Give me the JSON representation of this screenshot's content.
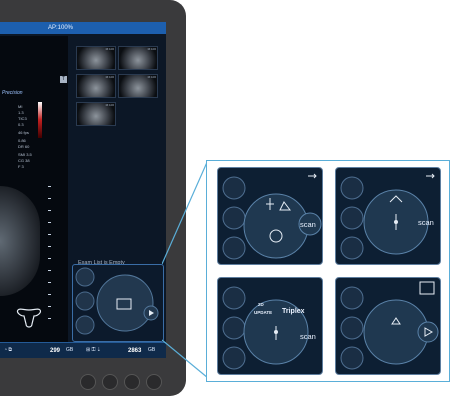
{
  "device": {
    "top_bar": {
      "power_text": "AP:100%"
    },
    "left_panel": {
      "brand_text": "Precision",
      "params": [
        "MI",
        "1.3",
        "TIC3",
        "0.3",
        "46 fps",
        "0.86",
        "DR 60",
        "SMI 3.5",
        "CG 38",
        "F 3"
      ]
    },
    "thumbnails": [
      {
        "label": "M:100"
      },
      {
        "label": "M:100"
      },
      {
        "label": "M:100"
      },
      {
        "label": "M:100"
      },
      {
        "label": "M:100"
      }
    ],
    "exam_list_status": "Exam List is Empty",
    "bottom_bar": {
      "left_value": "299",
      "left_unit": "GB",
      "right_value": "2863",
      "right_unit": "GB"
    },
    "hardware_buttons_count": 4
  },
  "callout": {
    "panels": [
      {
        "id": "panel-1",
        "labels": {
          "scan": "scan"
        }
      },
      {
        "id": "panel-2",
        "labels": {
          "scan": "scan"
        }
      },
      {
        "id": "panel-3",
        "labels": {
          "update_top": "2D",
          "update_bottom": "UPDATE",
          "triplex": "Triplex",
          "scan": "scan"
        }
      },
      {
        "id": "panel-4",
        "labels": {}
      }
    ]
  },
  "colors": {
    "accent": "#1d5fae",
    "panel_bg": "#0d1f33",
    "callout_border": "#5aaed8"
  }
}
